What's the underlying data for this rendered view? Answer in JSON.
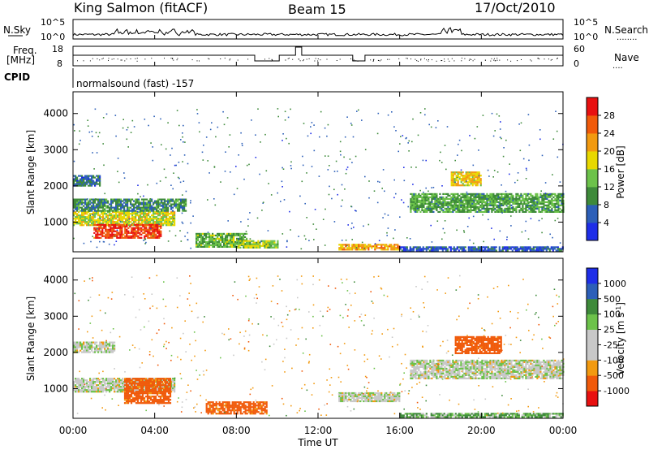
{
  "header": {
    "station": "King Salmon (fitACF)",
    "beam": "Beam 15",
    "date": "17/Oct/2010"
  },
  "left_labels": {
    "nsky": "N.Sky",
    "freq_line1": "Freq.",
    "freq_line2": "[MHz]",
    "cpid": "CPID"
  },
  "right_labels": {
    "nsearch": "N.Search",
    "nsearch_dots": "........",
    "nave": "Nave",
    "nave_dots": "...."
  },
  "strip_ticks": {
    "noise_top": "10^5",
    "noise_bottom": "10^0",
    "freq_top": "18",
    "freq_bottom": "8",
    "nave_top": "60",
    "nave_bottom": "0"
  },
  "cpid_text": "normalsound (fast) -157",
  "x_axis": {
    "label": "Time UT",
    "ticks": [
      "00:00",
      "04:00",
      "08:00",
      "12:00",
      "16:00",
      "20:00",
      "00:00"
    ]
  },
  "colors": {
    "power": [
      "#1e2ee8",
      "#2c5fb8",
      "#3e8a3a",
      "#6cc24a",
      "#e8d800",
      "#f29a10",
      "#f05a0a",
      "#e81010"
    ],
    "velocity": [
      "#e81010",
      "#f05a0a",
      "#f29a10",
      "#c8c8c8",
      "#c8c8c8",
      "#6cc24a",
      "#3e8a3a",
      "#2c5fb8",
      "#1e2ee8"
    ]
  },
  "chart_data": [
    {
      "type": "heatmap",
      "panel": "power",
      "ylabel": "Slant Range [km]",
      "ylim": [
        180,
        4600
      ],
      "yticks": [
        "1000",
        "2000",
        "3000",
        "4000"
      ],
      "xlim_hours": [
        0,
        24
      ],
      "colorbar_label": "Power [dB]",
      "colorbar_ticks": [
        "4",
        "8",
        "12",
        "16",
        "20",
        "24",
        "28"
      ],
      "colorbar_range": [
        0,
        30
      ],
      "regions": [
        {
          "t0": 0.0,
          "t1": 5.0,
          "r0": 900,
          "r1": 1300,
          "value": 16
        },
        {
          "t0": 1.0,
          "t1": 4.3,
          "r0": 550,
          "r1": 950,
          "value": 26
        },
        {
          "t0": 0.0,
          "t1": 5.5,
          "r0": 1300,
          "r1": 1650,
          "value": 9
        },
        {
          "t0": 0.0,
          "t1": 1.3,
          "r0": 2000,
          "r1": 2300,
          "value": 7
        },
        {
          "t0": 6.0,
          "t1": 8.5,
          "r0": 300,
          "r1": 700,
          "value": 12
        },
        {
          "t0": 8.0,
          "t1": 10.0,
          "r0": 300,
          "r1": 500,
          "value": 14
        },
        {
          "t0": 13.0,
          "t1": 16.0,
          "r0": 250,
          "r1": 400,
          "value": 20
        },
        {
          "t0": 16.0,
          "t1": 24.0,
          "r0": 200,
          "r1": 330,
          "value": 5
        },
        {
          "t0": 16.5,
          "t1": 24.0,
          "r0": 1300,
          "r1": 1800,
          "value": 11
        },
        {
          "t0": 18.5,
          "t1": 20.0,
          "r0": 2000,
          "r1": 2400,
          "value": 18
        }
      ]
    },
    {
      "type": "heatmap",
      "panel": "velocity",
      "ylabel": "Slant Range [km]",
      "ylim": [
        180,
        4600
      ],
      "yticks": [
        "1000",
        "2000",
        "3000",
        "4000"
      ],
      "xlim_hours": [
        0,
        24
      ],
      "colorbar_label": "Velocity [m s^-1]",
      "colorbar_ticks": [
        "-1000",
        "-500",
        "-100",
        "-25",
        "25",
        "100",
        "500",
        "1000"
      ],
      "regions": [
        {
          "t0": 0.0,
          "t1": 5.0,
          "r0": 900,
          "r1": 1300,
          "value": 0
        },
        {
          "t0": 2.5,
          "t1": 4.8,
          "r0": 600,
          "r1": 1300,
          "value": -300
        },
        {
          "t0": 6.5,
          "t1": 9.5,
          "r0": 300,
          "r1": 650,
          "value": -300
        },
        {
          "t0": 13.0,
          "t1": 16.0,
          "r0": 650,
          "r1": 900,
          "value": 0
        },
        {
          "t0": 16.5,
          "t1": 24.0,
          "r0": 1300,
          "r1": 1800,
          "value": 0
        },
        {
          "t0": 18.7,
          "t1": 21.0,
          "r0": 2000,
          "r1": 2450,
          "value": -400
        },
        {
          "t0": 0.0,
          "t1": 2.0,
          "r0": 2000,
          "r1": 2300,
          "value": 0
        },
        {
          "t0": 16.0,
          "t1": 24.0,
          "r0": 200,
          "r1": 330,
          "value": 60
        }
      ]
    }
  ]
}
